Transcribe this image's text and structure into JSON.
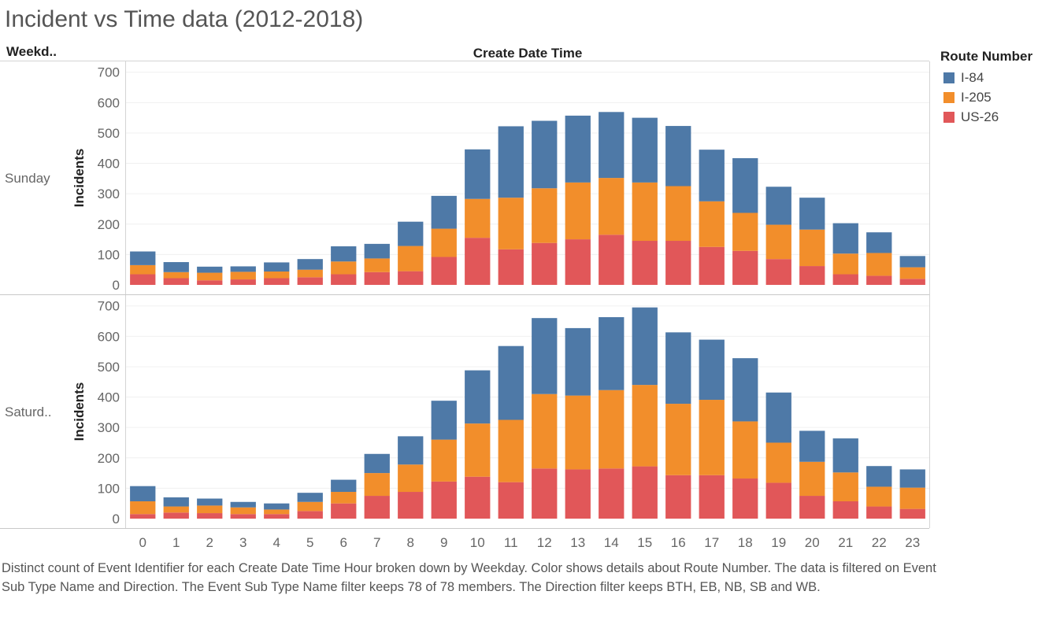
{
  "title": "Incident vs Time data (2012-2018)",
  "row_header": "Weekd..",
  "column_header": "Create Date Time",
  "legend": {
    "title": "Route Number",
    "items": [
      {
        "label": "I-84",
        "color": "#4e79a7"
      },
      {
        "label": "I-205",
        "color": "#f28e2b"
      },
      {
        "label": "US-26",
        "color": "#e15759"
      }
    ]
  },
  "caption": "Distinct count of Event Identifier for each Create Date Time Hour broken down by Weekday.  Color shows details about Route Number. The data is filtered on Event Sub Type Name and Direction. The Event Sub Type Name filter keeps 78 of 78 members. The Direction filter keeps BTH, EB, NB, SB and WB.",
  "chart_data": {
    "type": "bar",
    "stacked": true,
    "ylabel": "Incidents",
    "xlabel": "",
    "ylim": [
      0,
      720
    ],
    "yticks": [
      0,
      100,
      200,
      300,
      400,
      500,
      600,
      700
    ],
    "categories": [
      "0",
      "1",
      "2",
      "3",
      "4",
      "5",
      "6",
      "7",
      "8",
      "9",
      "10",
      "11",
      "12",
      "13",
      "14",
      "15",
      "16",
      "17",
      "18",
      "19",
      "20",
      "21",
      "22",
      "23"
    ],
    "panels": [
      {
        "name": "Sunday",
        "series": [
          {
            "name": "US-26",
            "values": [
              35,
              22,
              15,
              18,
              22,
              25,
              35,
              42,
              45,
              92,
              155,
              117,
              138,
              150,
              165,
              145,
              145,
              125,
              112,
              85,
              62,
              35,
              30,
              20
            ]
          },
          {
            "name": "I-205",
            "values": [
              30,
              20,
              25,
              25,
              22,
              25,
              42,
              45,
              83,
              93,
              128,
              170,
              180,
              187,
              187,
              192,
              180,
              150,
              125,
              113,
              120,
              68,
              75,
              38
            ]
          },
          {
            "name": "I-84",
            "values": [
              45,
              33,
              20,
              18,
              30,
              35,
              50,
              48,
              80,
              108,
              163,
              235,
              222,
              220,
              217,
              213,
              198,
              170,
              180,
              125,
              105,
              100,
              68,
              37
            ]
          }
        ]
      },
      {
        "name": "Saturd..",
        "series": [
          {
            "name": "US-26",
            "values": [
              15,
              20,
              18,
              15,
              15,
              25,
              50,
              75,
              88,
              122,
              138,
              120,
              165,
              162,
              165,
              172,
              143,
              143,
              132,
              118,
              75,
              57,
              40,
              32
            ]
          },
          {
            "name": "I-205",
            "values": [
              42,
              20,
              25,
              22,
              15,
              30,
              38,
              75,
              90,
              138,
              175,
              205,
              245,
              243,
              258,
              268,
              235,
              248,
              188,
              132,
              112,
              95,
              65,
              70
            ]
          },
          {
            "name": "I-84",
            "values": [
              50,
              30,
              23,
              18,
              20,
              30,
              40,
              63,
              93,
              128,
              175,
              243,
              250,
              222,
              240,
              255,
              235,
              198,
              208,
              165,
              102,
              112,
              68,
              60
            ]
          }
        ]
      }
    ]
  }
}
